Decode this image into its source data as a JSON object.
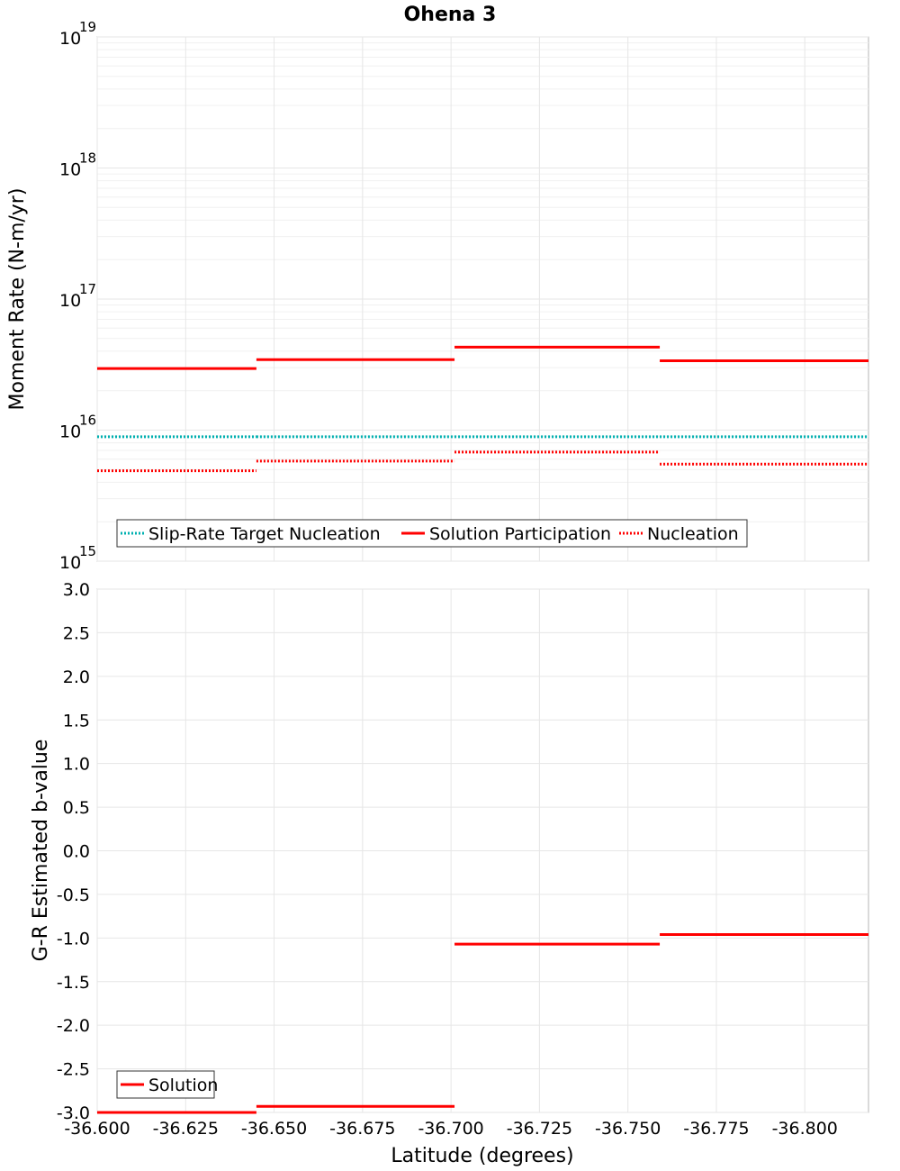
{
  "chart_data": [
    {
      "type": "line",
      "subtype": "step",
      "title": "Ohena 3",
      "xlabel": "Latitude (degrees)",
      "ylabel": "Moment Rate (N-m/yr)",
      "yscale": "log",
      "ylim": [
        1000000000000000.0,
        1e+19
      ],
      "xlim": [
        -36.6,
        -36.818
      ],
      "y_tick_base": "10",
      "y_tick_exponents": [
        "15",
        "16",
        "17",
        "18",
        "19"
      ],
      "segment_bounds": [
        -36.6,
        -36.645,
        -36.701,
        -36.759,
        -36.818
      ],
      "series": [
        {
          "name": "Slip-Rate Target Nucleation",
          "color": "#00b0b0",
          "style": "dotted",
          "values": [
            8900000000000000.0,
            8900000000000000.0,
            8900000000000000.0,
            8900000000000000.0
          ]
        },
        {
          "name": "Solution Participation",
          "color": "#ff0000",
          "style": "solid",
          "values": [
            2.95e+16,
            3.45e+16,
            4.3e+16,
            3.38e+16
          ]
        },
        {
          "name": "Nucleation",
          "color": "#ff0000",
          "style": "dotted",
          "values": [
            4900000000000000.0,
            5800000000000000.0,
            6800000000000000.0,
            5500000000000000.0
          ]
        }
      ],
      "legend": "bottom-left",
      "grid": true
    },
    {
      "type": "line",
      "subtype": "step",
      "title": "",
      "xlabel": "Latitude (degrees)",
      "ylabel": "G-R Estimated b-value",
      "ylim": [
        -3.0,
        3.0
      ],
      "xlim": [
        -36.6,
        -36.818
      ],
      "y_ticks": [
        "3.0",
        "2.5",
        "2.0",
        "1.5",
        "1.0",
        "0.5",
        "0.0",
        "-0.5",
        "-1.0",
        "-1.5",
        "-2.0",
        "-2.5",
        "-3.0"
      ],
      "x_ticks": [
        "-36.600",
        "-36.625",
        "-36.650",
        "-36.675",
        "-36.700",
        "-36.725",
        "-36.750",
        "-36.775",
        "-36.800"
      ],
      "segment_bounds": [
        -36.6,
        -36.645,
        -36.701,
        -36.759,
        -36.818
      ],
      "series": [
        {
          "name": "Solution",
          "color": "#ff0000",
          "style": "solid",
          "values": [
            -3.0,
            -2.93,
            -1.07,
            -0.96
          ]
        }
      ],
      "legend": "bottom-left",
      "grid": true
    }
  ]
}
